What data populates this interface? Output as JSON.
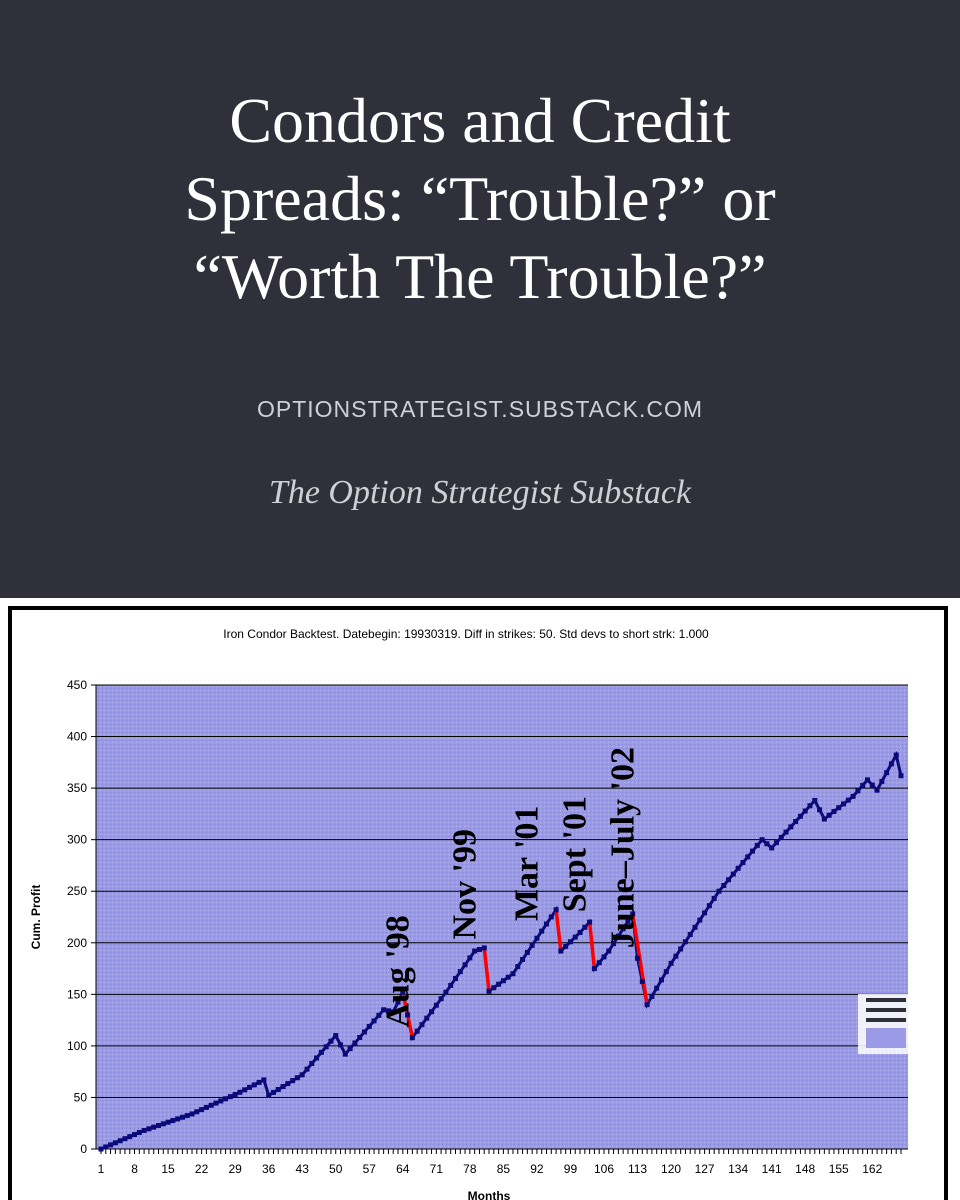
{
  "header": {
    "title": "Condors and Credit\nSpreads: “Trouble?” or\n“Worth The Trouble?”",
    "site_url": "OPTIONSTRATEGIST.SUBSTACK.COM",
    "publication": "The Option Strategist Substack"
  },
  "colors": {
    "background": "#30303b",
    "plot_area": "#9a9ae6",
    "series": "#0a0a78",
    "drawdown": "#ff0000",
    "text_light": "#cfd0d6"
  },
  "chart_data": {
    "type": "line",
    "title": "Iron Condor Backtest.  Datebegin: 19930319.  Diff in strikes: 50.  Std devs to short strk: 1.000",
    "xlabel": "Months",
    "ylabel": "Cum. Profit",
    "ylim": [
      0,
      450
    ],
    "xlim": [
      1,
      168
    ],
    "yticks": [
      0,
      50,
      100,
      150,
      200,
      250,
      300,
      350,
      400,
      450
    ],
    "xticks": [
      1,
      8,
      15,
      22,
      29,
      36,
      43,
      50,
      57,
      64,
      71,
      78,
      85,
      92,
      99,
      106,
      113,
      120,
      127,
      134,
      141,
      148,
      155,
      162
    ],
    "grid": true,
    "legend": "none",
    "series": [
      {
        "points": [
          [
            1,
            0
          ],
          [
            10,
            18
          ],
          [
            20,
            34
          ],
          [
            30,
            55
          ],
          [
            35,
            67
          ],
          [
            36,
            52
          ],
          [
            43,
            72
          ],
          [
            50,
            110
          ],
          [
            52,
            92
          ],
          [
            60,
            135
          ],
          [
            62,
            133
          ],
          [
            64,
            152
          ],
          [
            66,
            108
          ],
          [
            73,
            152
          ],
          [
            79,
            192
          ],
          [
            81,
            195
          ],
          [
            82,
            153
          ],
          [
            87,
            170
          ],
          [
            96,
            232
          ],
          [
            97,
            192
          ],
          [
            101,
            210
          ],
          [
            103,
            220
          ],
          [
            104,
            175
          ],
          [
            107,
            192
          ],
          [
            112,
            228
          ],
          [
            113,
            185
          ],
          [
            115,
            140
          ],
          [
            120,
            180
          ],
          [
            130,
            250
          ],
          [
            139,
            300
          ],
          [
            141,
            292
          ],
          [
            150,
            338
          ],
          [
            152,
            320
          ],
          [
            158,
            342
          ],
          [
            161,
            358
          ],
          [
            163,
            348
          ],
          [
            167,
            382
          ],
          [
            168,
            362
          ]
        ]
      }
    ],
    "drawdown_segments": [
      [
        [
          64,
          152
        ],
        [
          66,
          108
        ]
      ],
      [
        [
          81,
          195
        ],
        [
          82,
          153
        ]
      ],
      [
        [
          96,
          232
        ],
        [
          97,
          192
        ]
      ],
      [
        [
          103,
          220
        ],
        [
          104,
          175
        ]
      ],
      [
        [
          112,
          228
        ],
        [
          115,
          140
        ]
      ]
    ],
    "annotations": [
      {
        "text": "Aug '98",
        "x": 66
      },
      {
        "text": "Nov '99",
        "x": 80
      },
      {
        "text": "Mar '01",
        "x": 93
      },
      {
        "text": "Sept '01",
        "x": 103
      },
      {
        "text": "June–July '02",
        "x": 113
      }
    ]
  }
}
